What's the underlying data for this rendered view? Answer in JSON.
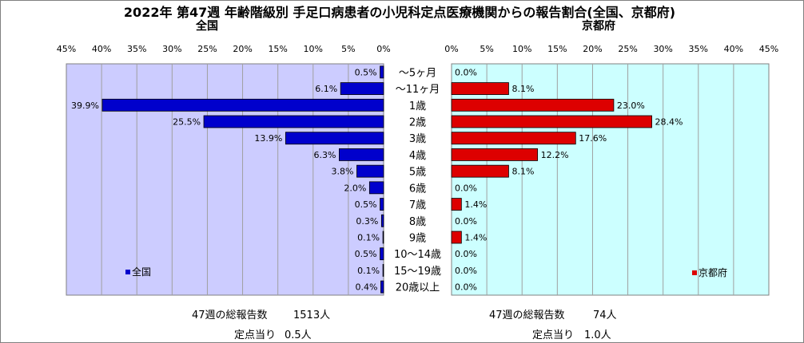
{
  "title": "2022年 第47週  年齢階級別 手足口病患者の小児科定点医療機関からの報告割合(全国、京都府)",
  "colors": {
    "zenkoku": "#0000cc",
    "kyoto": "#dd0000",
    "plot_bg_left": "#ccccff",
    "plot_bg_right": "#ccffff"
  },
  "categories": [
    "～5ヶ月",
    "～11ヶ月",
    "1歳",
    "2歳",
    "3歳",
    "4歳",
    "5歳",
    "6歳",
    "7歳",
    "8歳",
    "9歳",
    "10～14歳",
    "15～19歳",
    "20歳以上"
  ],
  "chart_data": [
    {
      "type": "bar",
      "orientation": "horizontal",
      "subtitle": "全国",
      "legend": "全国",
      "legend_position": "bottom-left",
      "x_direction": "reversed",
      "xlim": [
        0,
        45
      ],
      "ticks": [
        "0%",
        "5%",
        "10%",
        "15%",
        "20%",
        "25%",
        "30%",
        "35%",
        "40%",
        "45%"
      ],
      "grid": true,
      "categories": [
        "～5ヶ月",
        "～11ヶ月",
        "1歳",
        "2歳",
        "3歳",
        "4歳",
        "5歳",
        "6歳",
        "7歳",
        "8歳",
        "9歳",
        "10～14歳",
        "15～19歳",
        "20歳以上"
      ],
      "values": [
        0.5,
        6.1,
        39.9,
        25.5,
        13.9,
        6.3,
        3.8,
        2.0,
        0.5,
        0.3,
        0.1,
        0.5,
        0.1,
        0.4
      ],
      "data_labels": [
        "0.5%",
        "6.1%",
        "39.9%",
        "25.5%",
        "13.9%",
        "6.3%",
        "3.8%",
        "2.0%",
        "0.5%",
        "0.3%",
        "0.1%",
        "0.5%",
        "0.1%",
        "0.4%"
      ]
    },
    {
      "type": "bar",
      "orientation": "horizontal",
      "subtitle": "京都府",
      "legend": "京都府",
      "legend_position": "bottom-right",
      "xlim": [
        0,
        45
      ],
      "ticks": [
        "0%",
        "5%",
        "10%",
        "15%",
        "20%",
        "25%",
        "30%",
        "35%",
        "40%",
        "45%"
      ],
      "grid": true,
      "categories": [
        "～5ヶ月",
        "～11ヶ月",
        "1歳",
        "2歳",
        "3歳",
        "4歳",
        "5歳",
        "6歳",
        "7歳",
        "8歳",
        "9歳",
        "10～14歳",
        "15～19歳",
        "20歳以上"
      ],
      "values": [
        0.0,
        8.1,
        23.0,
        28.4,
        17.6,
        12.2,
        8.1,
        0.0,
        1.4,
        0.0,
        1.4,
        0.0,
        0.0,
        0.0
      ],
      "data_labels": [
        "0.0%",
        "8.1%",
        "23.0%",
        "28.4%",
        "17.6%",
        "12.2%",
        "8.1%",
        "0.0%",
        "1.4%",
        "0.0%",
        "1.4%",
        "0.0%",
        "0.0%",
        "0.0%"
      ]
    }
  ],
  "footer": {
    "left": {
      "total_label": "47週の総報告数",
      "total_value": "1513人",
      "per_label": "定点当り",
      "per_value": "0.5人"
    },
    "right": {
      "total_label": "47週の総報告数",
      "total_value": "74人",
      "per_label": "定点当り",
      "per_value": "1.0人"
    }
  }
}
